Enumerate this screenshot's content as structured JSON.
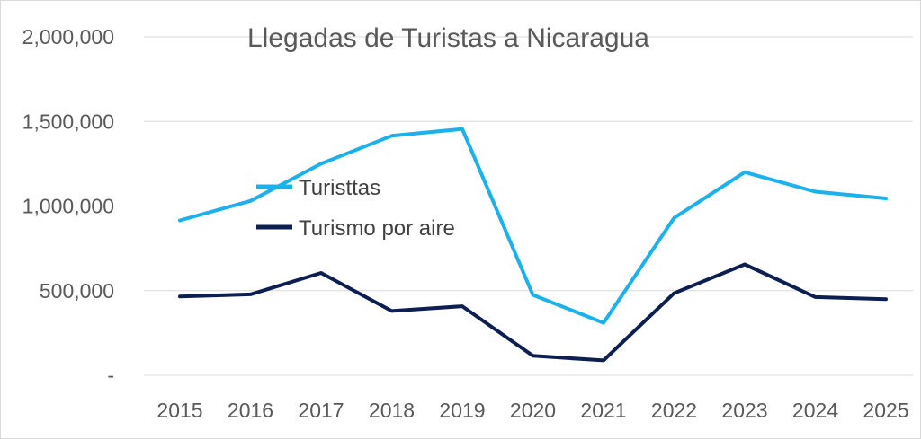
{
  "chart_data": {
    "type": "line",
    "title": "Llegadas de Turistas a Nicaragua",
    "xlabel": "",
    "ylabel": "",
    "categories": [
      "2015",
      "2016",
      "2017",
      "2018",
      "2019",
      "2020",
      "2021",
      "2022",
      "2023",
      "2024",
      "2025"
    ],
    "series": [
      {
        "name": "Turisttas",
        "color": "#1cb0ec",
        "values": [
          915000,
          1030000,
          1250000,
          1415000,
          1455000,
          475000,
          310000,
          930000,
          1200000,
          1085000,
          1045000
        ]
      },
      {
        "name": "Turismo por aire",
        "color": "#0d1f52",
        "values": [
          465000,
          478000,
          605000,
          380000,
          408000,
          115000,
          88000,
          485000,
          655000,
          462000,
          450000
        ]
      }
    ],
    "ylim": [
      0,
      2000000
    ],
    "yticks": [
      {
        "value": 0,
        "label": "-"
      },
      {
        "value": 500000,
        "label": "500,000"
      },
      {
        "value": 1000000,
        "label": "1,000,000"
      },
      {
        "value": 1500000,
        "label": "1,500,000"
      },
      {
        "value": 2000000,
        "label": "2,000,000"
      }
    ],
    "grid": true,
    "legend_position": "center-left"
  }
}
